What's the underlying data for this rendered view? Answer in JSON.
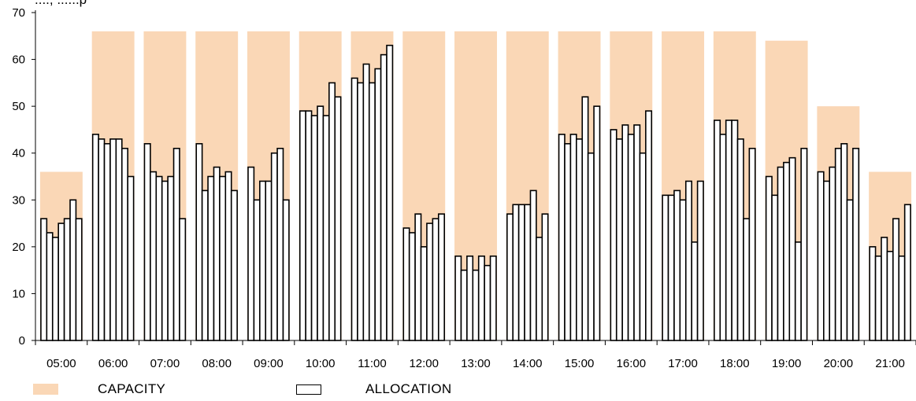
{
  "title_fragment": "...., ......p",
  "colors": {
    "capacity": "#fad7b6",
    "allocation_fill": "#ffffff",
    "allocation_stroke": "#000000"
  },
  "chart_data": {
    "type": "bar",
    "ylim": [
      0,
      70
    ],
    "yticks": [
      0,
      10,
      20,
      30,
      40,
      50,
      60,
      70
    ],
    "grid": false,
    "legend_position": "bottom",
    "categories": [
      "05:00",
      "06:00",
      "07:00",
      "08:00",
      "09:00",
      "10:00",
      "11:00",
      "12:00",
      "13:00",
      "14:00",
      "15:00",
      "16:00",
      "17:00",
      "18:00",
      "19:00",
      "20:00",
      "21:00"
    ],
    "series": [
      {
        "name": "CAPACITY",
        "values": [
          36,
          66,
          66,
          66,
          66,
          66,
          66,
          66,
          66,
          66,
          66,
          66,
          66,
          66,
          64,
          50,
          36
        ]
      },
      {
        "name": "ALLOCATION",
        "values": [
          [
            26,
            23,
            22,
            25,
            26,
            30,
            26
          ],
          [
            44,
            43,
            42,
            43,
            43,
            41,
            35
          ],
          [
            42,
            36,
            35,
            34,
            35,
            41,
            26
          ],
          [
            42,
            32,
            35,
            37,
            35,
            36,
            32
          ],
          [
            37,
            30,
            34,
            34,
            40,
            41,
            30
          ],
          [
            49,
            49,
            48,
            50,
            48,
            55,
            52
          ],
          [
            56,
            55,
            59,
            55,
            58,
            61,
            63
          ],
          [
            24,
            23,
            27,
            20,
            25,
            26,
            27
          ],
          [
            18,
            15,
            18,
            15,
            18,
            16,
            18
          ],
          [
            27,
            29,
            29,
            29,
            32,
            22,
            27
          ],
          [
            44,
            42,
            44,
            43,
            52,
            40,
            50
          ],
          [
            45,
            43,
            46,
            44,
            46,
            40,
            49
          ],
          [
            31,
            31,
            32,
            30,
            34,
            21,
            34
          ],
          [
            47,
            44,
            47,
            47,
            43,
            26,
            41
          ],
          [
            35,
            31,
            37,
            38,
            39,
            21,
            41
          ],
          [
            36,
            34,
            37,
            41,
            42,
            30,
            41
          ],
          [
            20,
            18,
            22,
            19,
            26,
            18,
            29
          ]
        ]
      }
    ]
  }
}
